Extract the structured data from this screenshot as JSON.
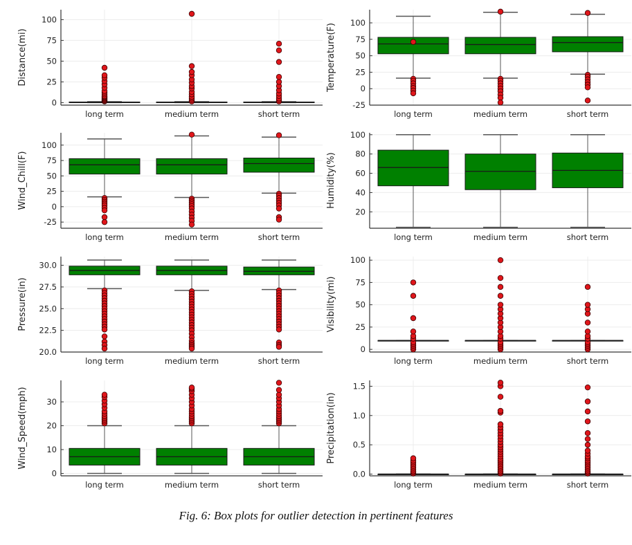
{
  "caption": "Fig. 6: Box plots for outlier detection in pertinent features",
  "colors": {
    "box_fill": "#008000",
    "box_edge": "#1a1a1a",
    "outlier_fill": "#e0161b",
    "outlier_edge": "#3a0000",
    "whisker": "#555555",
    "grid": "#ececec",
    "axis": "#333333"
  },
  "chart_data": [
    {
      "type": "box",
      "ylabel": "Distance(mi)",
      "categories": [
        "long term",
        "medium term",
        "short term"
      ],
      "ylim": [
        -3,
        112
      ],
      "yticks": [
        0,
        25,
        50,
        75,
        100
      ],
      "series": [
        {
          "category": "long term",
          "whisker_low": 0,
          "q1": 0,
          "median": 0.3,
          "q3": 0.8,
          "whisker_high": 1.2,
          "outliers": [
            1.5,
            2,
            3,
            4,
            5,
            6,
            7,
            8,
            10,
            12,
            14,
            18,
            22,
            26,
            30,
            33,
            42
          ]
        },
        {
          "category": "medium term",
          "whisker_low": 0,
          "q1": 0,
          "median": 0.3,
          "q3": 0.8,
          "whisker_high": 1.2,
          "outliers": [
            1.5,
            3,
            5,
            7,
            10,
            13,
            17,
            20,
            24,
            28,
            33,
            37,
            44,
            107
          ]
        },
        {
          "category": "short term",
          "whisker_low": 0,
          "q1": 0,
          "median": 0.3,
          "q3": 0.8,
          "whisker_high": 1.2,
          "outliers": [
            1.5,
            3,
            5,
            8,
            11,
            15,
            20,
            25,
            31,
            49,
            63,
            71
          ]
        }
      ]
    },
    {
      "type": "box",
      "ylabel": "Temperature(F)",
      "categories": [
        "long term",
        "medium term",
        "short term"
      ],
      "ylim": [
        -25,
        120
      ],
      "yticks": [
        -25,
        0,
        25,
        50,
        75,
        100
      ],
      "series": [
        {
          "category": "long term",
          "whisker_low": 16,
          "q1": 53,
          "median": 68,
          "q3": 78,
          "whisker_high": 110,
          "outliers": [
            15,
            12,
            8,
            4,
            1,
            -3,
            -7,
            71
          ]
        },
        {
          "category": "medium term",
          "whisker_low": 16,
          "q1": 53,
          "median": 67,
          "q3": 78,
          "whisker_high": 116,
          "outliers": [
            15,
            12,
            8,
            4,
            0,
            -4,
            -9,
            -14,
            -21,
            117
          ]
        },
        {
          "category": "short term",
          "whisker_low": 22,
          "q1": 56,
          "median": 70,
          "q3": 79,
          "whisker_high": 113,
          "outliers": [
            21,
            18,
            14,
            10,
            6,
            2,
            -18,
            115
          ]
        }
      ]
    },
    {
      "type": "box",
      "ylabel": "Wind_Chill(F)",
      "categories": [
        "long term",
        "medium term",
        "short term"
      ],
      "ylim": [
        -35,
        120
      ],
      "yticks": [
        -25,
        0,
        25,
        50,
        75,
        100
      ],
      "series": [
        {
          "category": "long term",
          "whisker_low": 16,
          "q1": 53,
          "median": 68,
          "q3": 78,
          "whisker_high": 110,
          "outliers": [
            14,
            11,
            8,
            5,
            2,
            -2,
            -6,
            -17,
            -25
          ]
        },
        {
          "category": "medium term",
          "whisker_low": 15,
          "q1": 53,
          "median": 68,
          "q3": 78,
          "whisker_high": 115,
          "outliers": [
            13,
            10,
            7,
            4,
            1,
            -3,
            -8,
            -13,
            -18,
            -23,
            -29,
            117
          ]
        },
        {
          "category": "short term",
          "whisker_low": 22,
          "q1": 56,
          "median": 70,
          "q3": 79,
          "whisker_high": 113,
          "outliers": [
            21,
            18,
            14,
            10,
            6,
            2,
            -3,
            -17,
            -21,
            116
          ]
        }
      ]
    },
    {
      "type": "box",
      "ylabel": "Humidity(%)",
      "categories": [
        "long term",
        "medium term",
        "short term"
      ],
      "ylim": [
        3,
        102
      ],
      "yticks": [
        20,
        40,
        60,
        80,
        100
      ],
      "series": [
        {
          "category": "long term",
          "whisker_low": 4,
          "q1": 47,
          "median": 66,
          "q3": 84,
          "whisker_high": 100,
          "outliers": []
        },
        {
          "category": "medium term",
          "whisker_low": 4,
          "q1": 43,
          "median": 62,
          "q3": 80,
          "whisker_high": 100,
          "outliers": []
        },
        {
          "category": "short term",
          "whisker_low": 4,
          "q1": 45,
          "median": 63,
          "q3": 81,
          "whisker_high": 100,
          "outliers": []
        }
      ]
    },
    {
      "type": "box",
      "ylabel": "Pressure(in)",
      "categories": [
        "long term",
        "medium term",
        "short term"
      ],
      "ylim": [
        20,
        31
      ],
      "yticks": [
        20.0,
        22.5,
        25.0,
        27.5,
        30.0
      ],
      "series": [
        {
          "category": "long term",
          "whisker_low": 27.3,
          "q1": 28.9,
          "median": 29.4,
          "q3": 29.9,
          "whisker_high": 30.6,
          "outliers": [
            27.1,
            26.8,
            26.5,
            26.2,
            25.9,
            25.6,
            25.3,
            25.0,
            24.7,
            24.4,
            24.1,
            23.8,
            23.5,
            23.2,
            22.9,
            22.6,
            21.8,
            21.2,
            20.8,
            20.4
          ]
        },
        {
          "category": "medium term",
          "whisker_low": 27.1,
          "q1": 28.9,
          "median": 29.4,
          "q3": 29.9,
          "whisker_high": 30.6,
          "outliers": [
            27.0,
            26.7,
            26.4,
            26.1,
            25.8,
            25.5,
            25.2,
            24.9,
            24.6,
            24.3,
            24.0,
            23.7,
            23.4,
            23.1,
            22.8,
            22.5,
            22.1,
            21.7,
            21.3,
            21.0,
            20.8,
            20.6,
            20.4
          ]
        },
        {
          "category": "short term",
          "whisker_low": 27.2,
          "q1": 28.9,
          "median": 29.3,
          "q3": 29.8,
          "whisker_high": 30.6,
          "outliers": [
            27.1,
            26.8,
            26.5,
            26.2,
            25.9,
            25.6,
            25.3,
            25.0,
            24.7,
            24.4,
            24.1,
            23.8,
            23.5,
            23.2,
            22.9,
            22.6,
            21.1,
            20.8,
            20.6
          ]
        }
      ]
    },
    {
      "type": "box",
      "ylabel": "Visibility(mi)",
      "categories": [
        "long term",
        "medium term",
        "short term"
      ],
      "ylim": [
        -3,
        104
      ],
      "yticks": [
        0,
        25,
        50,
        75,
        100
      ],
      "series": [
        {
          "category": "long term",
          "whisker_low": 10,
          "q1": 10,
          "median": 10,
          "q3": 10,
          "whisker_high": 10,
          "outliers": [
            0,
            2,
            4,
            6,
            8,
            12,
            15,
            20,
            35,
            60,
            75
          ]
        },
        {
          "category": "medium term",
          "whisker_low": 10,
          "q1": 10,
          "median": 10,
          "q3": 10,
          "whisker_high": 10,
          "outliers": [
            0,
            2,
            4,
            6,
            8,
            12,
            15,
            20,
            25,
            30,
            35,
            40,
            45,
            50,
            60,
            70,
            80,
            100
          ]
        },
        {
          "category": "short term",
          "whisker_low": 10,
          "q1": 10,
          "median": 10,
          "q3": 10,
          "whisker_high": 10,
          "outliers": [
            0,
            2,
            4,
            6,
            8,
            12,
            15,
            20,
            30,
            40,
            45,
            50,
            70
          ]
        }
      ]
    },
    {
      "type": "box",
      "ylabel": "Wind_Speed(mph)",
      "categories": [
        "long term",
        "medium term",
        "short term"
      ],
      "ylim": [
        -1,
        39
      ],
      "yticks": [
        0,
        10,
        20,
        30
      ],
      "series": [
        {
          "category": "long term",
          "whisker_low": 0,
          "q1": 3.5,
          "median": 7,
          "q3": 10.5,
          "whisker_high": 20,
          "outliers": [
            21,
            21.8,
            22.5,
            23.2,
            24,
            25,
            26,
            27.5,
            29,
            30.5,
            32,
            33
          ]
        },
        {
          "category": "medium term",
          "whisker_low": 0,
          "q1": 3.5,
          "median": 7,
          "q3": 10.5,
          "whisker_high": 20,
          "outliers": [
            21,
            21.8,
            22.5,
            23.2,
            24,
            25,
            26,
            27,
            28.5,
            30,
            31.5,
            33,
            34.5,
            35.5,
            36
          ]
        },
        {
          "category": "short term",
          "whisker_low": 0,
          "q1": 3.5,
          "median": 7,
          "q3": 10.5,
          "whisker_high": 20,
          "outliers": [
            21,
            21.8,
            22.5,
            23.2,
            24,
            25,
            26,
            27,
            28.5,
            30,
            31.5,
            33,
            35,
            38
          ]
        }
      ]
    },
    {
      "type": "box",
      "ylabel": "Precipitation(in)",
      "categories": [
        "long term",
        "medium term",
        "short term"
      ],
      "ylim": [
        -0.03,
        1.6
      ],
      "yticks": [
        0.0,
        0.5,
        1.0,
        1.5
      ],
      "series": [
        {
          "category": "long term",
          "whisker_low": 0,
          "q1": 0,
          "median": 0,
          "q3": 0,
          "whisker_high": 0,
          "outliers": [
            0.01,
            0.03,
            0.05,
            0.08,
            0.11,
            0.14,
            0.17,
            0.2,
            0.23,
            0.27
          ]
        },
        {
          "category": "medium term",
          "whisker_low": 0,
          "q1": 0,
          "median": 0,
          "q3": 0,
          "whisker_high": 0,
          "outliers": [
            0.01,
            0.03,
            0.05,
            0.08,
            0.11,
            0.14,
            0.17,
            0.2,
            0.23,
            0.26,
            0.3,
            0.34,
            0.38,
            0.42,
            0.46,
            0.5,
            0.55,
            0.6,
            0.65,
            0.7,
            0.75,
            0.8,
            0.85,
            1.05,
            1.08,
            1.32,
            1.5,
            1.56
          ]
        },
        {
          "category": "short term",
          "whisker_low": 0,
          "q1": 0,
          "median": 0,
          "q3": 0,
          "whisker_high": 0,
          "outliers": [
            0.01,
            0.03,
            0.05,
            0.08,
            0.11,
            0.14,
            0.17,
            0.2,
            0.23,
            0.27,
            0.3,
            0.35,
            0.4,
            0.5,
            0.6,
            0.7,
            0.9,
            1.07,
            1.24,
            1.48
          ]
        }
      ]
    }
  ]
}
